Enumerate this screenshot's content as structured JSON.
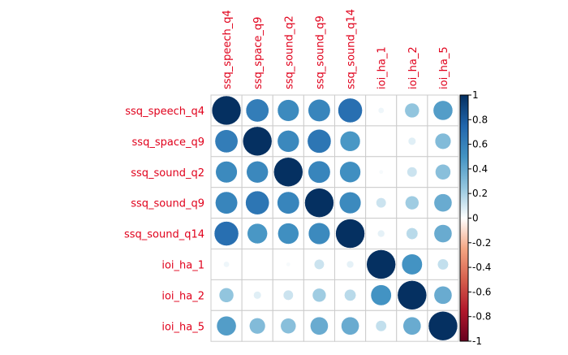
{
  "chart_data": {
    "type": "heatmap",
    "variables": [
      "ssq_speech_q4",
      "ssq_space_q9",
      "ssq_sound_q2",
      "ssq_sound_q9",
      "ssq_sound_q14",
      "ioi_ha_1",
      "ioi_ha_2",
      "ioi_ha_5"
    ],
    "matrix": [
      [
        1.0,
        0.62,
        0.55,
        0.58,
        0.7,
        0.04,
        0.25,
        0.45
      ],
      [
        0.62,
        1.0,
        0.56,
        0.66,
        0.48,
        0.0,
        0.07,
        0.3
      ],
      [
        0.55,
        0.56,
        1.0,
        0.58,
        0.52,
        0.02,
        0.12,
        0.28
      ],
      [
        0.58,
        0.66,
        0.58,
        1.0,
        0.55,
        0.12,
        0.22,
        0.38
      ],
      [
        0.7,
        0.48,
        0.52,
        0.55,
        1.0,
        0.06,
        0.16,
        0.38
      ],
      [
        0.04,
        0.0,
        0.02,
        0.12,
        0.06,
        1.0,
        0.5,
        0.14
      ],
      [
        0.25,
        0.07,
        0.12,
        0.22,
        0.16,
        0.5,
        1.0,
        0.38
      ],
      [
        0.45,
        0.3,
        0.28,
        0.38,
        0.38,
        0.14,
        0.38,
        1.0
      ]
    ],
    "colorbar": {
      "range": [
        -1,
        1
      ],
      "ticks": [
        "1",
        "0.8",
        "0.6",
        "0.4",
        "0.2",
        "0",
        "-0.2",
        "-0.4",
        "-0.6",
        "-0.8",
        "-1"
      ]
    },
    "label_color": "#e0001b",
    "grid": true,
    "legend_position": "right"
  }
}
